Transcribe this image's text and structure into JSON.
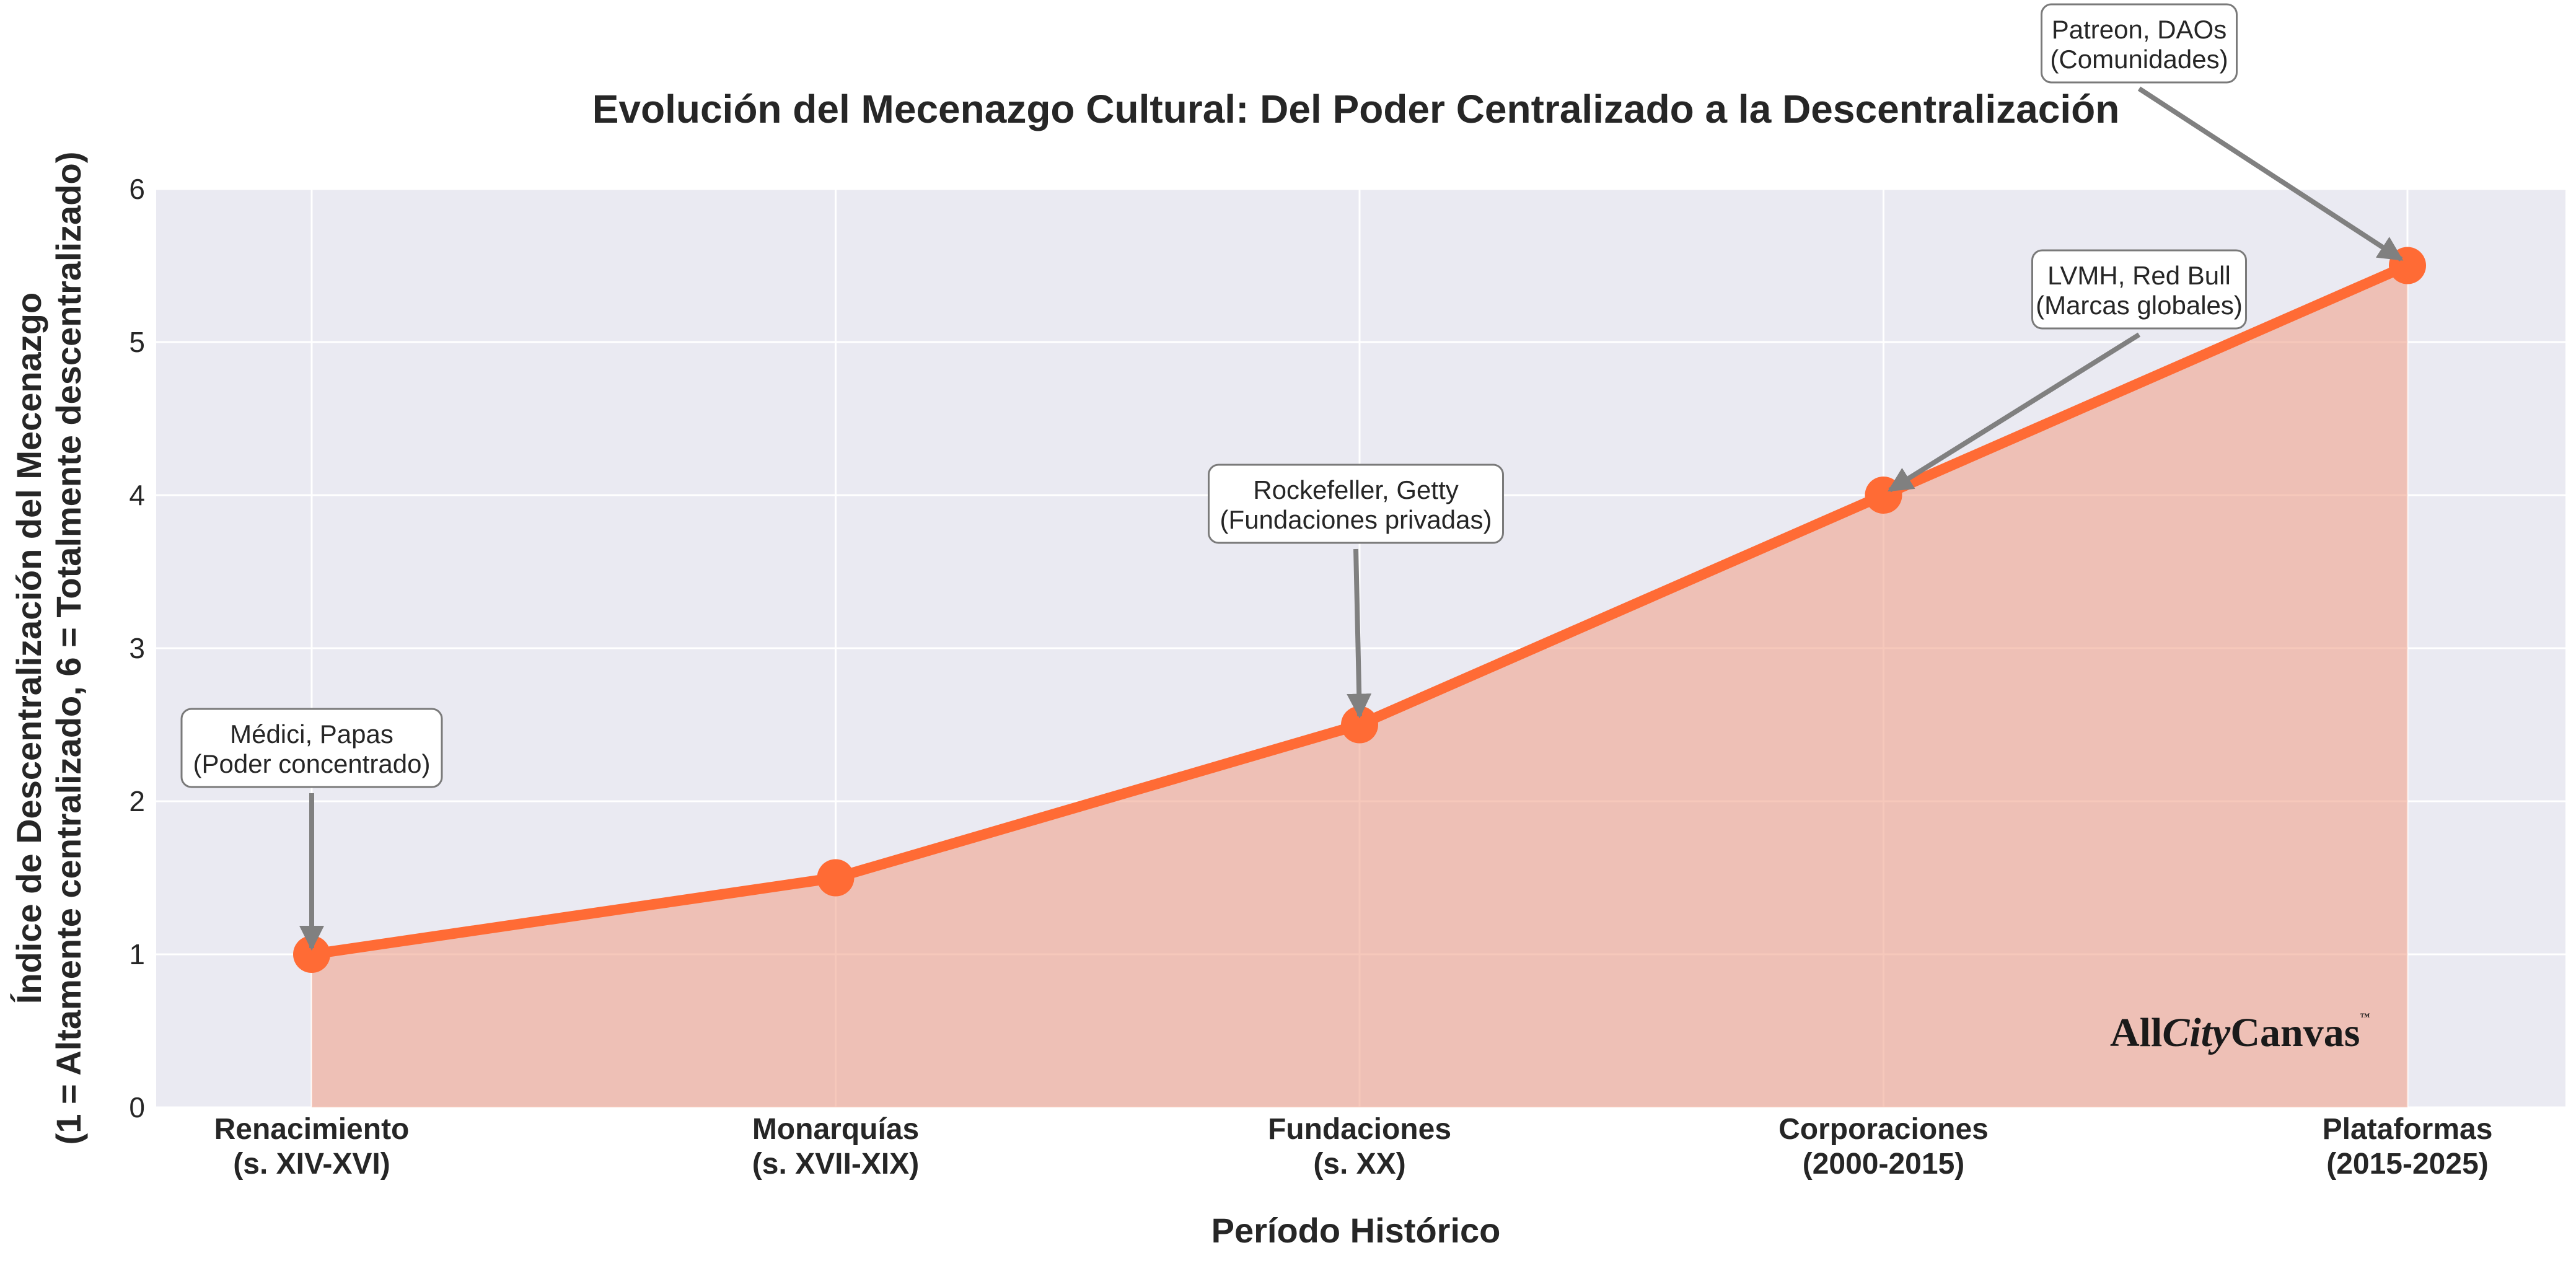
{
  "chart_data": {
    "type": "area",
    "title": "Evolución del Mecenazgo Cultural: Del Poder Centralizado a la Descentralización",
    "xlabel": "Período Histórico",
    "ylabel": [
      "Índice de Descentralización del Mecenazgo",
      "(1 = Altamente centralizado, 6 = Totalmente descentralizado)"
    ],
    "categories": [
      [
        "Renacimiento",
        "(s. XIV-XVI)"
      ],
      [
        "Monarquías",
        "(s. XVII-XIX)"
      ],
      [
        "Fundaciones",
        "(s. XX)"
      ],
      [
        "Corporaciones",
        "(2000-2015)"
      ],
      [
        "Plataformas",
        "(2015-2025)"
      ]
    ],
    "values": [
      1,
      1.5,
      2.5,
      4,
      5.5
    ],
    "ylim": [
      0,
      6
    ],
    "yticks": [
      0,
      1,
      2,
      3,
      4,
      5,
      6
    ],
    "grid": true,
    "colors": {
      "line": "#ff6b35",
      "fill": "#f0a48d",
      "plot_bg": "#eaeaf2",
      "arrow": "#808080"
    },
    "annotations": [
      {
        "index": 0,
        "lines": [
          "Médici, Papas",
          "(Poder concentrado)"
        ]
      },
      {
        "index": 2,
        "lines": [
          "Rockefeller, Getty",
          "(Fundaciones privadas)"
        ]
      },
      {
        "index": 3,
        "lines": [
          "LVMH, Red Bull",
          "(Marcas globales)"
        ]
      },
      {
        "index": 4,
        "lines": [
          "Patreon, DAOs",
          "(Comunidades)"
        ]
      }
    ]
  },
  "watermark": {
    "parts": [
      "All",
      "City",
      "Canvas"
    ],
    "tm": "™"
  }
}
